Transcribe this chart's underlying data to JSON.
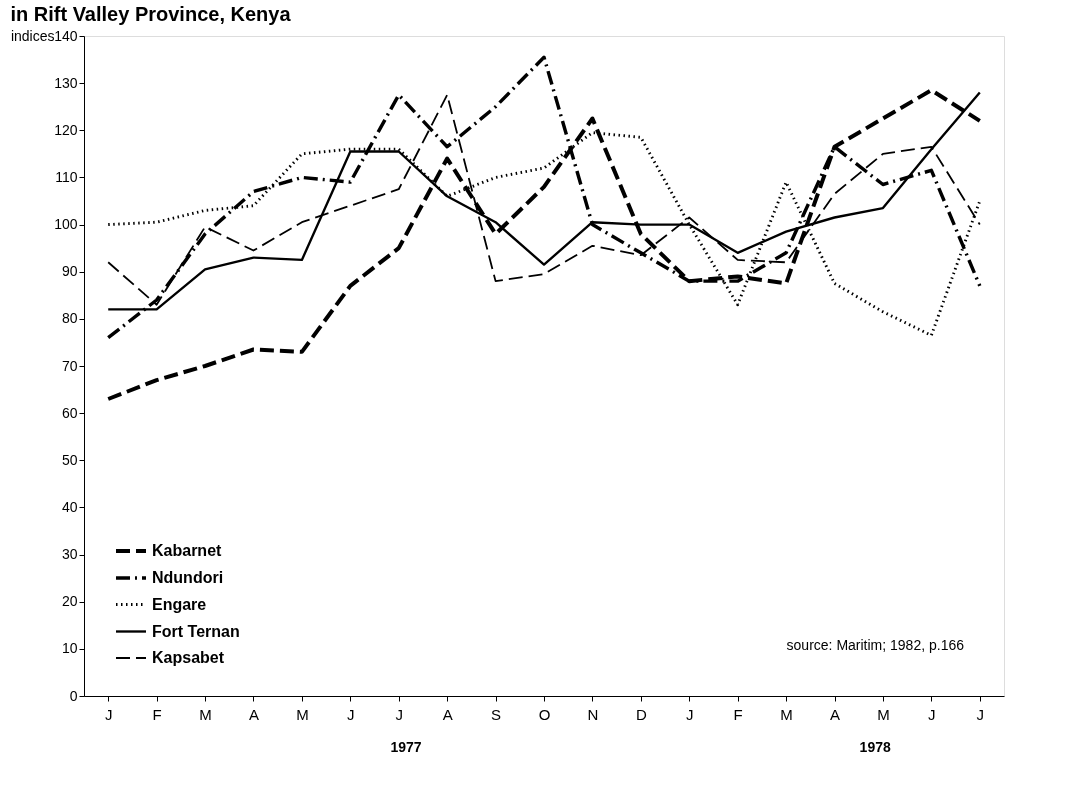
{
  "chart_data": {
    "type": "line",
    "title": "in Rift Valley Province, Kenya",
    "ylabel": "indices",
    "categories": [
      "J",
      "F",
      "M",
      "A",
      "M",
      "J",
      "J",
      "A",
      "S",
      "O",
      "N",
      "D",
      "J",
      "F",
      "M",
      "A",
      "M",
      "J",
      "J"
    ],
    "series": [
      {
        "name": "Kabarnet",
        "color": "#000000",
        "line_style": "dashed",
        "values": [
          63,
          67,
          70,
          73.5,
          73,
          87,
          95,
          114,
          98,
          108,
          122.5,
          98,
          88,
          89,
          87.5,
          116.5,
          122.5,
          128.5,
          122
        ]
      },
      {
        "name": "Ndundori",
        "color": "#000000",
        "line_style": "dashdot",
        "values": [
          76,
          84,
          98,
          107,
          110,
          109,
          127.5,
          116.5,
          125,
          135.5,
          100,
          94,
          88,
          88,
          94,
          116.5,
          108.5,
          111.5,
          87
        ]
      },
      {
        "name": "Engare",
        "color": "#000000",
        "line_style": "dotted",
        "values": [
          100,
          100.5,
          103,
          104,
          115,
          116,
          116,
          106,
          110,
          112,
          119.5,
          118.5,
          100,
          83,
          109,
          87.5,
          81.5,
          76.5,
          105
        ]
      },
      {
        "name": "Fort Ternan",
        "color": "#000000",
        "line_style": "solid",
        "values": [
          82,
          82,
          90.5,
          93,
          92.5,
          115.5,
          115.5,
          106,
          100.5,
          91.5,
          100.5,
          100,
          100,
          94,
          98.5,
          101.5,
          103.5,
          116,
          128
        ]
      },
      {
        "name": "Kapsabet",
        "color": "#000000",
        "line_style": "dashed",
        "values": [
          92,
          83,
          99.5,
          94.5,
          100.5,
          104,
          107.5,
          127.5,
          88,
          89.5,
          95.5,
          93.5,
          101.5,
          92.5,
          92,
          106.5,
          115,
          116.5,
          100
        ]
      }
    ],
    "ylim": [
      0,
      140
    ],
    "yticks": [
      0,
      10,
      20,
      30,
      40,
      50,
      60,
      70,
      80,
      90,
      100,
      110,
      120,
      130,
      140
    ],
    "grid": false,
    "legend": "bottom left",
    "marker": "none",
    "annotations": [
      "source: Maritim; 1982, p.166",
      "1977",
      "1978"
    ]
  }
}
